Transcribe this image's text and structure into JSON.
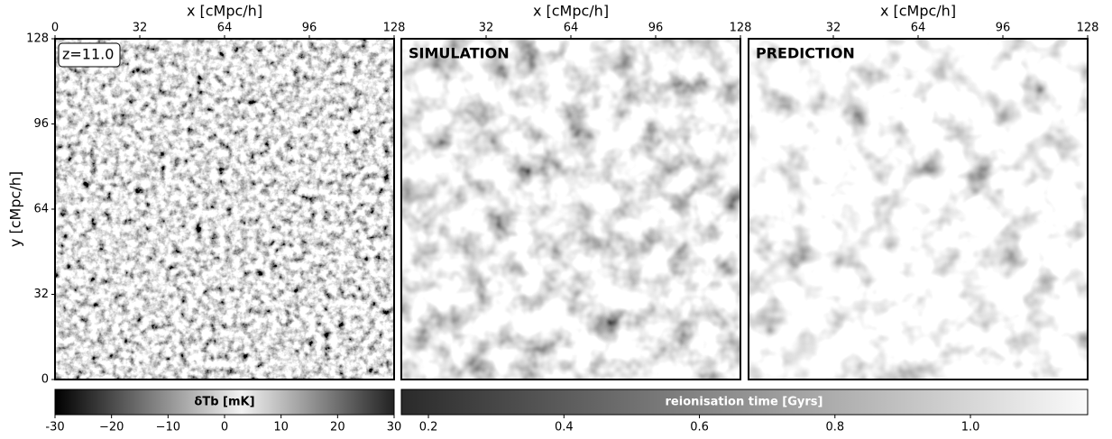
{
  "chart_data": [
    {
      "type": "heatmap",
      "xlabel": "x [cMpc/h]",
      "ylabel": "y [cMpc/h]",
      "annotation": "z=11.0",
      "xlim": [
        0,
        128
      ],
      "ylim": [
        0,
        128
      ],
      "xticks": [
        0,
        32,
        64,
        96,
        128
      ],
      "yticks": [
        0,
        32,
        64,
        96,
        128
      ]
    },
    {
      "type": "heatmap",
      "xlabel": "x [cMpc/h]",
      "annotation": "SIMULATION",
      "xlim": [
        0,
        128
      ],
      "xticks": [
        32,
        64,
        96,
        128
      ]
    },
    {
      "type": "heatmap",
      "xlabel": "x [cMpc/h]",
      "annotation": "PREDICTION",
      "xlim": [
        0,
        128
      ],
      "xticks": [
        32,
        64,
        96,
        128
      ]
    },
    {
      "type": "colorbar",
      "label": "δTb [mK]",
      "xlim": [
        -30,
        30
      ],
      "xticks": [
        -30,
        {
          "value": -20,
          "label": "−20"
        },
        {
          "value": -10,
          "label": "−10"
        },
        0,
        10,
        20,
        30
      ]
    },
    {
      "type": "colorbar",
      "label": "reionisation time [Gyrs]",
      "xlim": [
        0.16,
        1.173
      ],
      "xticks": [
        0.2,
        0.4,
        0.6,
        0.8,
        {
          "value": 1,
          "label": "1.0"
        }
      ]
    }
  ]
}
